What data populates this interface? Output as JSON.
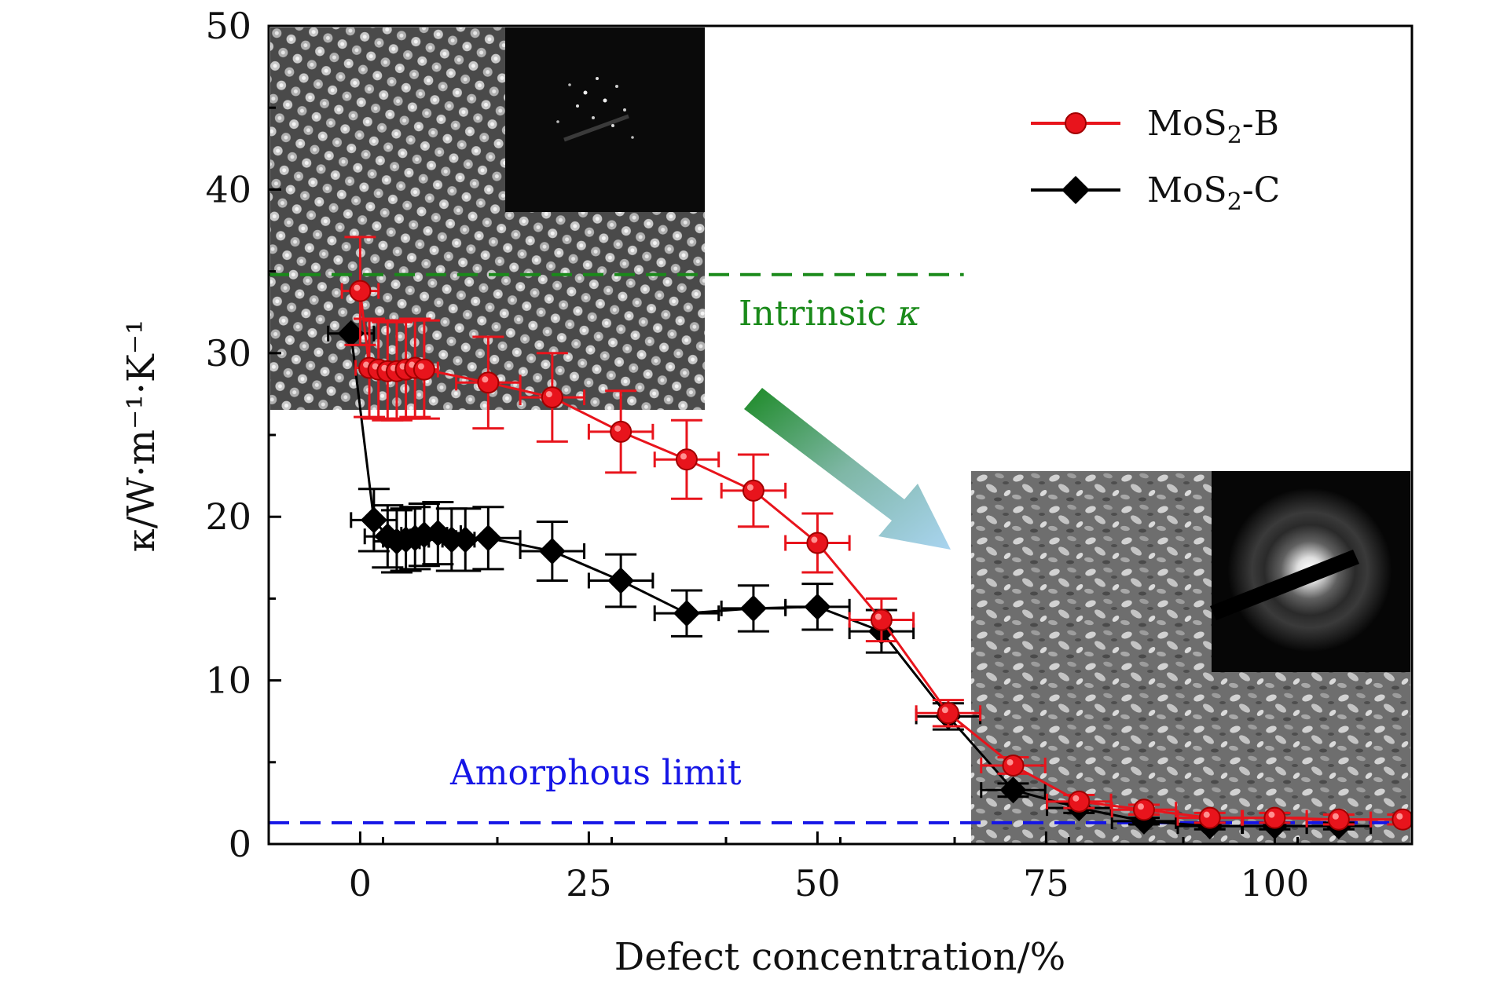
{
  "chart_data": {
    "type": "line",
    "title": "",
    "xlabel": "Defect concentration/%",
    "ylabel": "κ/W·m⁻¹·K⁻¹",
    "xlim": [
      -10,
      115
    ],
    "ylim": [
      0,
      50
    ],
    "xticks": [
      0,
      25,
      50,
      75,
      100
    ],
    "yticks": [
      0,
      10,
      20,
      30,
      40,
      50
    ],
    "xtick_labels": [
      "0",
      "25",
      "50",
      "75",
      "100"
    ],
    "ytick_labels": [
      "0",
      "10",
      "20",
      "30",
      "40",
      "50"
    ],
    "legend_position": "top-right",
    "series": [
      {
        "name": "MoS2-B",
        "legend_main": "MoS",
        "legend_sub": "2",
        "legend_suffix": "-B",
        "color": "#e8141c",
        "marker": "circle",
        "x": [
          0,
          1,
          2,
          3,
          4,
          5,
          6,
          7,
          14,
          21,
          28.5,
          35.7,
          43,
          50,
          57,
          64.3,
          71.4,
          78.6,
          85.7,
          92.9,
          100,
          107,
          114
        ],
        "y": [
          33.8,
          29.1,
          29.0,
          28.9,
          28.9,
          29.0,
          29.1,
          29.0,
          28.2,
          27.3,
          25.2,
          23.5,
          21.6,
          18.4,
          13.7,
          8.0,
          4.8,
          2.6,
          2.1,
          1.6,
          1.6,
          1.5,
          1.5
        ],
        "yerr": [
          3.3,
          3.0,
          3.0,
          3.0,
          3.0,
          3.0,
          3.0,
          3.0,
          2.8,
          2.7,
          2.5,
          2.4,
          2.2,
          1.8,
          1.3,
          0.8,
          0.5,
          0.4,
          0.3,
          0.3,
          0.3,
          0.3,
          0.3
        ],
        "xerr": [
          2.0,
          1.5,
          1.5,
          1.5,
          1.5,
          1.5,
          1.5,
          1.5,
          3.5,
          3.5,
          3.5,
          3.5,
          3.5,
          3.5,
          3.5,
          3.5,
          3.5,
          3.5,
          3.5,
          3.5,
          3.5,
          3.5,
          3.5
        ]
      },
      {
        "name": "MoS2-C",
        "legend_main": "MoS",
        "legend_sub": "2",
        "legend_suffix": "-C",
        "color": "#000000",
        "marker": "diamond",
        "x": [
          -1,
          1.5,
          3,
          4,
          5,
          6,
          7,
          8.5,
          10,
          11.5,
          14,
          21,
          28.5,
          35.7,
          43,
          50,
          57,
          64.3,
          71.4,
          78.6,
          85.7,
          92.9,
          100,
          107
        ],
        "y": [
          31.2,
          19.8,
          18.8,
          18.5,
          18.6,
          18.7,
          18.9,
          19.0,
          18.6,
          18.6,
          18.7,
          17.9,
          16.1,
          14.1,
          14.4,
          14.5,
          13.0,
          7.8,
          3.3,
          2.2,
          1.4,
          1.1,
          1.1,
          1.1
        ],
        "yerr": [
          0.0,
          1.9,
          1.9,
          1.9,
          1.9,
          1.9,
          1.9,
          1.9,
          1.9,
          1.9,
          1.9,
          1.8,
          1.6,
          1.4,
          1.4,
          1.4,
          1.3,
          0.8,
          0.4,
          0.3,
          0.2,
          0.2,
          0.2,
          0.2
        ],
        "xerr": [
          2.5,
          2.5,
          2.5,
          2.5,
          2.5,
          2.5,
          2.5,
          2.5,
          2.5,
          2.5,
          3.5,
          3.5,
          3.5,
          3.5,
          3.5,
          3.5,
          3.5,
          3.5,
          3.5,
          3.5,
          3.5,
          3.5,
          3.5,
          3.5
        ]
      }
    ],
    "reference_lines": [
      {
        "label": "Intrinsic κ",
        "label_main": "Intrinsic ",
        "label_symbol": "κ",
        "y": 34.8,
        "x_start": -10,
        "x_end": 66,
        "color": "#1a8a1a",
        "style": "dashed"
      },
      {
        "label": "Amorphous limit",
        "y": 1.3,
        "x_start": -10,
        "x_end": 115,
        "color": "#1515e6",
        "style": "dashed"
      }
    ],
    "annotations": [
      {
        "type": "image",
        "name": "crystalline-tem-micrograph",
        "description": "lattice micrograph with diffraction-spot pattern inset"
      },
      {
        "type": "image",
        "name": "amorphous-tem-micrograph",
        "description": "disordered micrograph with diffuse ring pattern inset"
      },
      {
        "type": "arrow",
        "name": "transition-arrow",
        "direction": "down-right"
      }
    ]
  }
}
